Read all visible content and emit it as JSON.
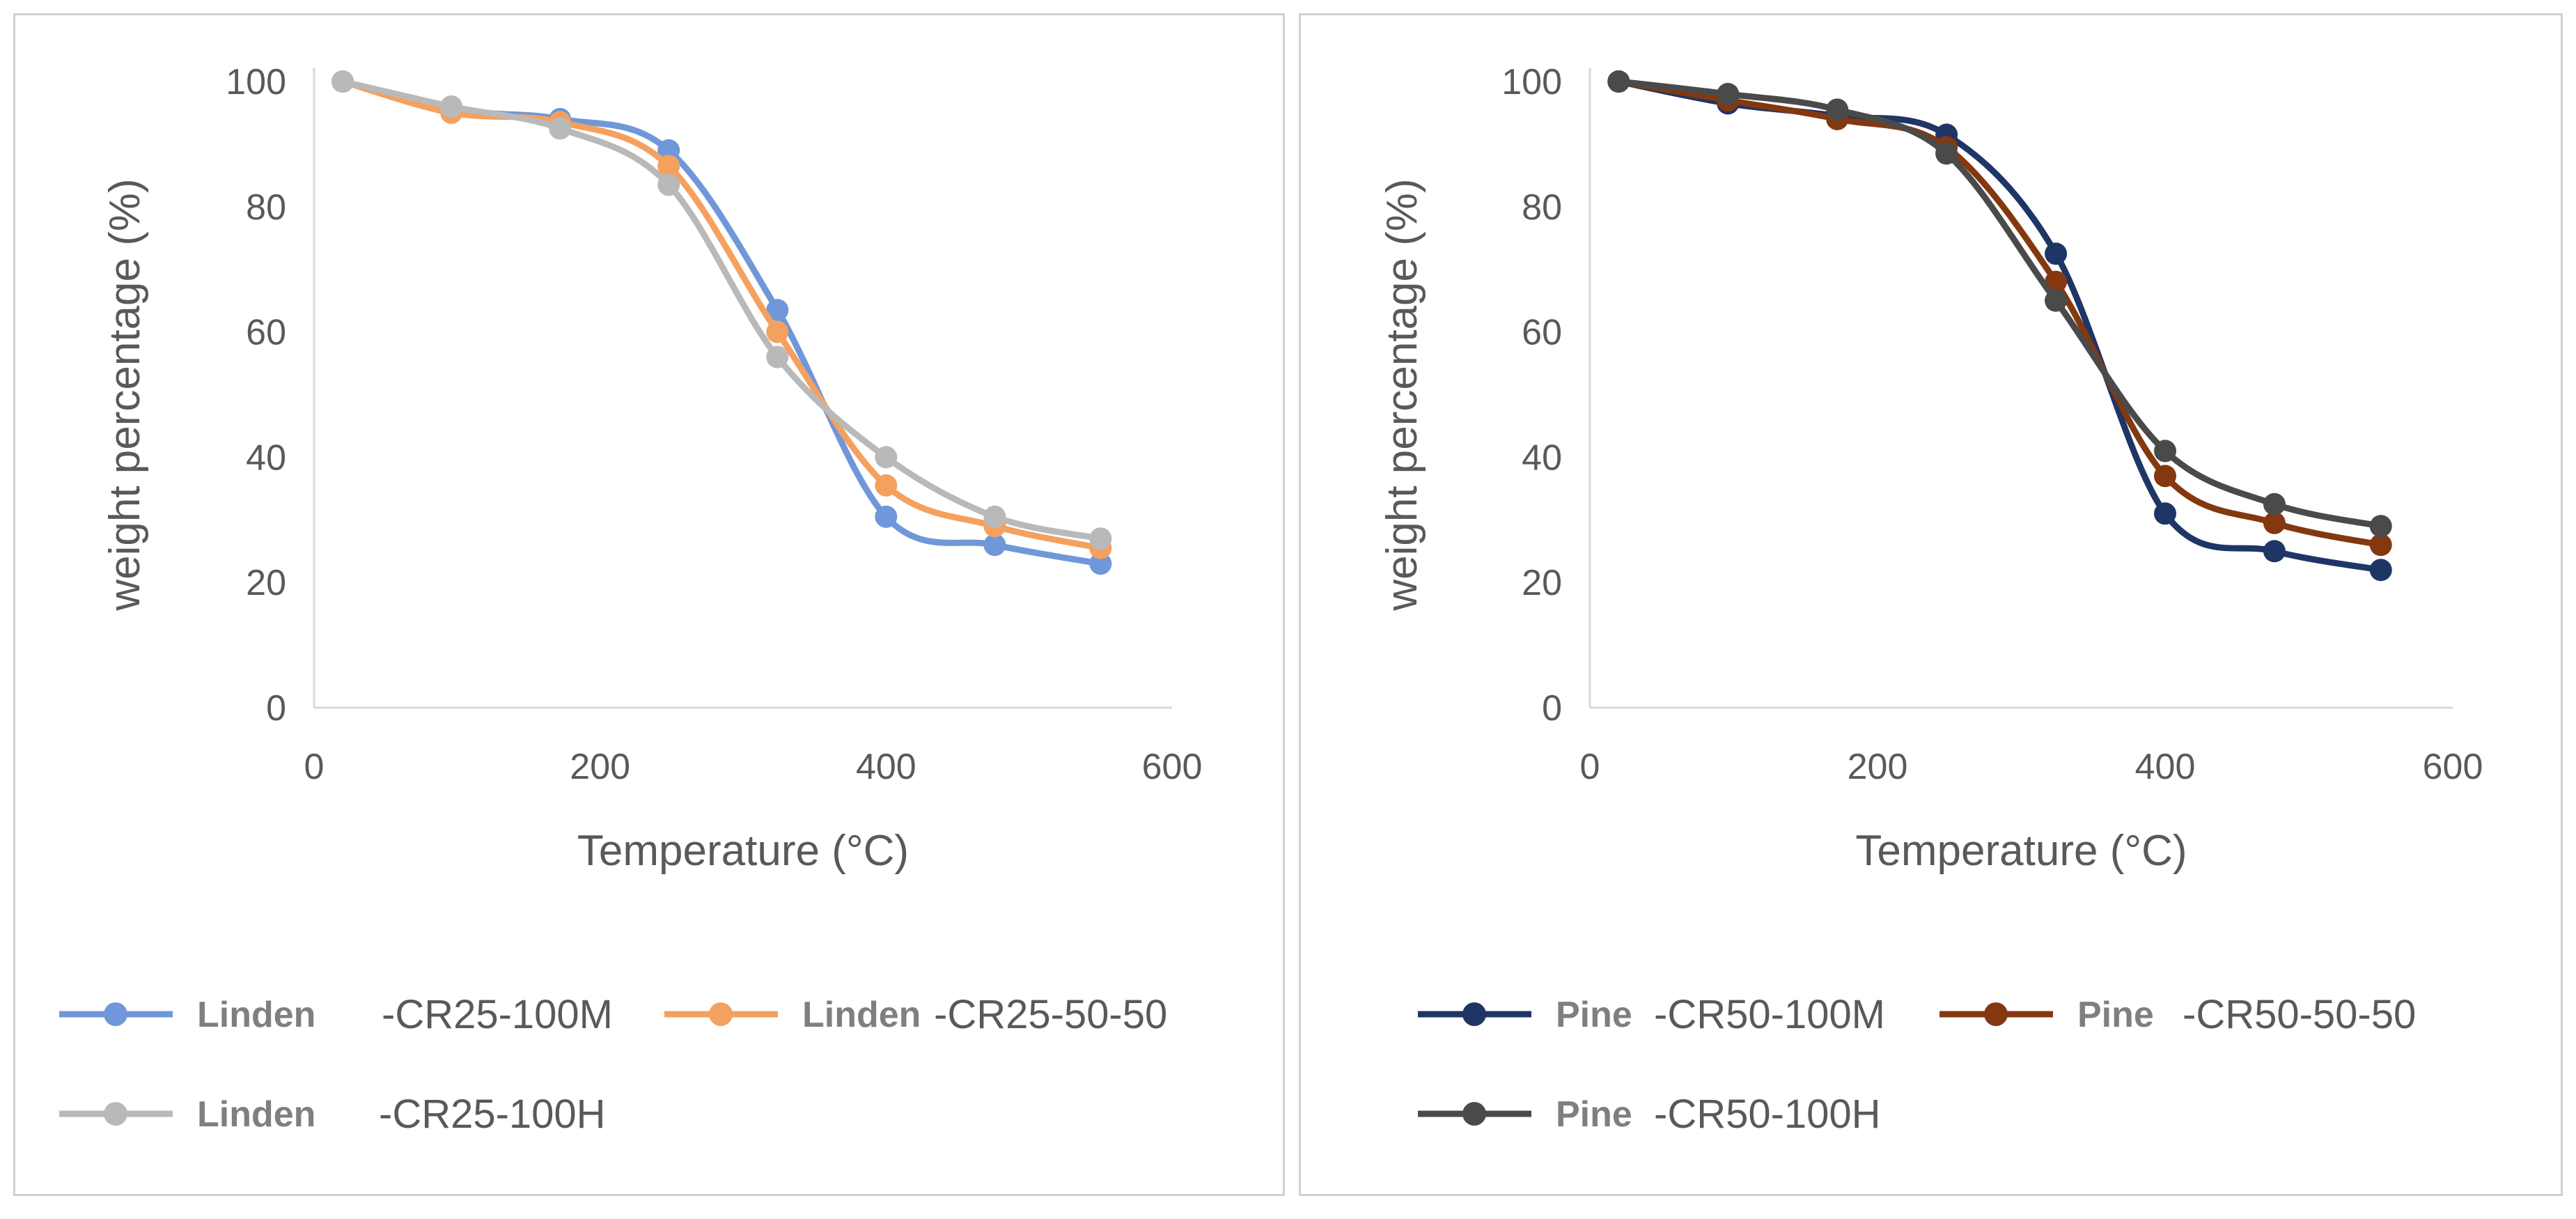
{
  "chart_data": [
    {
      "type": "line",
      "xlabel": "Temperature (°C)",
      "ylabel": "weight percentage (%)",
      "xlim": [
        0,
        600
      ],
      "ylim": [
        0,
        100
      ],
      "xticks": [
        "0",
        "200",
        "400",
        "600"
      ],
      "yticks": [
        "0",
        "20",
        "40",
        "60",
        "80",
        "100"
      ],
      "legend_position": "bottom",
      "x": [
        20,
        96,
        172,
        248,
        324,
        400,
        476,
        550
      ],
      "series": [
        {
          "name": "Linden -CR25-100M",
          "name_bold": "Linden",
          "name_rest": "-CR25-100M",
          "color": "#6f97d9",
          "values": [
            100,
            95.5,
            94,
            89,
            63.5,
            30.5,
            26,
            23
          ]
        },
        {
          "name": "Linden -CR25-50-50",
          "name_bold": "Linden",
          "name_rest": "-CR25-50-50",
          "color": "#f4a15f",
          "values": [
            100,
            95,
            93.5,
            86.5,
            60,
            35.5,
            29,
            25.5
          ]
        },
        {
          "name": "Linden -CR25-100H",
          "name_bold": "Linden",
          "name_rest": "-CR25-100H",
          "color": "#b9b9b9",
          "values": [
            100,
            96,
            92.5,
            83.5,
            56,
            40,
            30.5,
            27
          ]
        }
      ]
    },
    {
      "type": "line",
      "xlabel": "Temperature (°C)",
      "ylabel": "weight percentage (%)",
      "xlim": [
        0,
        600
      ],
      "ylim": [
        0,
        100
      ],
      "xticks": [
        "0",
        "200",
        "400",
        "600"
      ],
      "yticks": [
        "0",
        "20",
        "40",
        "60",
        "80",
        "100"
      ],
      "legend_position": "bottom",
      "x": [
        20,
        96,
        172,
        248,
        324,
        400,
        476,
        550
      ],
      "series": [
        {
          "name": "Pine -CR50-100M",
          "name_bold": "Pine",
          "name_rest": "-CR50-100M",
          "color": "#1f3566",
          "values": [
            100,
            96.5,
            94.5,
            91.5,
            72.5,
            31,
            25,
            22
          ]
        },
        {
          "name": "Pine -CR50-50-50",
          "name_bold": "Pine",
          "name_rest": "-CR50-50-50",
          "color": "#83380f",
          "values": [
            100,
            97,
            94,
            89.5,
            68,
            37,
            29.5,
            26
          ]
        },
        {
          "name": "Pine -CR50-100H",
          "name_bold": "Pine",
          "name_rest": "-CR50-100H",
          "color": "#4a4a4a",
          "values": [
            100,
            98,
            95.5,
            88.5,
            65,
            41,
            32.5,
            29
          ]
        }
      ]
    }
  ]
}
